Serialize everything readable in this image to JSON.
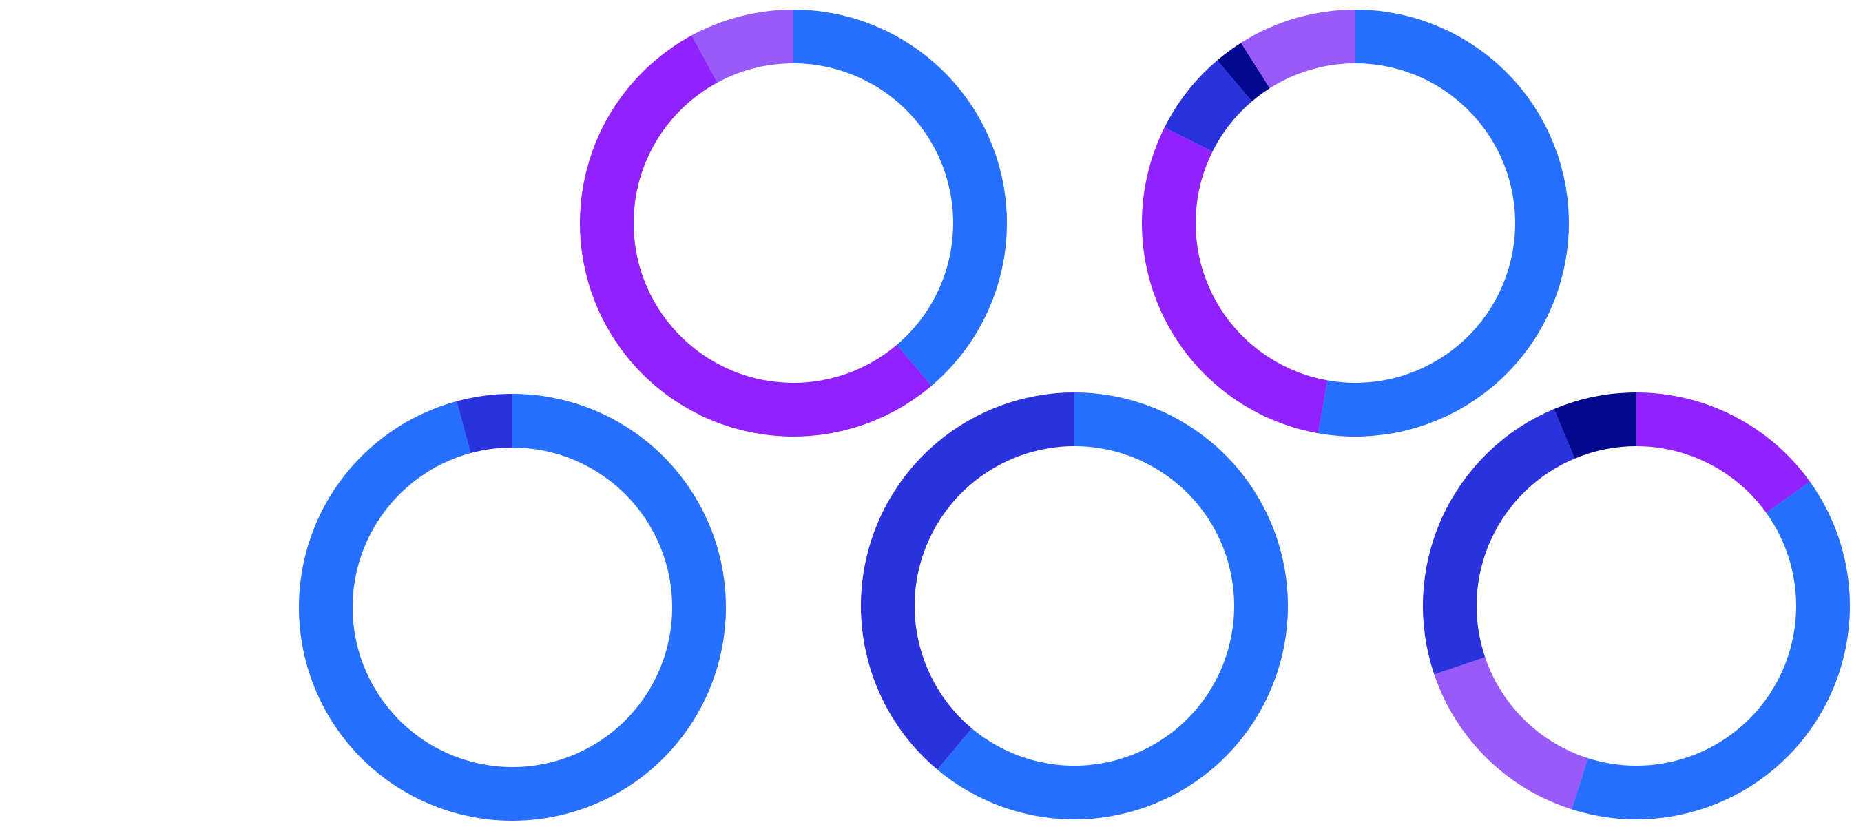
{
  "colors": {
    "blue": "#276ffe",
    "purple": "#9022fd",
    "lavender": "#995afa",
    "indigo": "#2a32dd",
    "navy": "#03098d"
  },
  "chart_data": [
    {
      "type": "pie",
      "variant": "donut",
      "position": "top-center",
      "slices": [
        {
          "color": "blue",
          "value": 38.8
        },
        {
          "color": "purple",
          "value": 53.3
        },
        {
          "color": "lavender",
          "value": 7.9
        }
      ]
    },
    {
      "type": "pie",
      "variant": "donut",
      "position": "top-right",
      "slices": [
        {
          "color": "blue",
          "value": 52.8
        },
        {
          "color": "purple",
          "value": 29.6
        },
        {
          "color": "indigo",
          "value": 6.4
        },
        {
          "color": "navy",
          "value": 2.2
        },
        {
          "color": "lavender",
          "value": 9.0
        }
      ]
    },
    {
      "type": "pie",
      "variant": "donut",
      "position": "bottom-left",
      "slices": [
        {
          "color": "blue",
          "value": 95.8
        },
        {
          "color": "indigo",
          "value": 4.2
        }
      ]
    },
    {
      "type": "pie",
      "variant": "donut",
      "position": "bottom-center",
      "slices": [
        {
          "color": "blue",
          "value": 61.1
        },
        {
          "color": "indigo",
          "value": 38.9
        }
      ]
    },
    {
      "type": "pie",
      "variant": "donut",
      "position": "bottom-right",
      "slices": [
        {
          "color": "purple",
          "value": 15.1
        },
        {
          "color": "blue",
          "value": 39.8
        },
        {
          "color": "lavender",
          "value": 14.9
        },
        {
          "color": "indigo",
          "value": 23.9
        },
        {
          "color": "navy",
          "value": 6.3
        }
      ]
    }
  ]
}
